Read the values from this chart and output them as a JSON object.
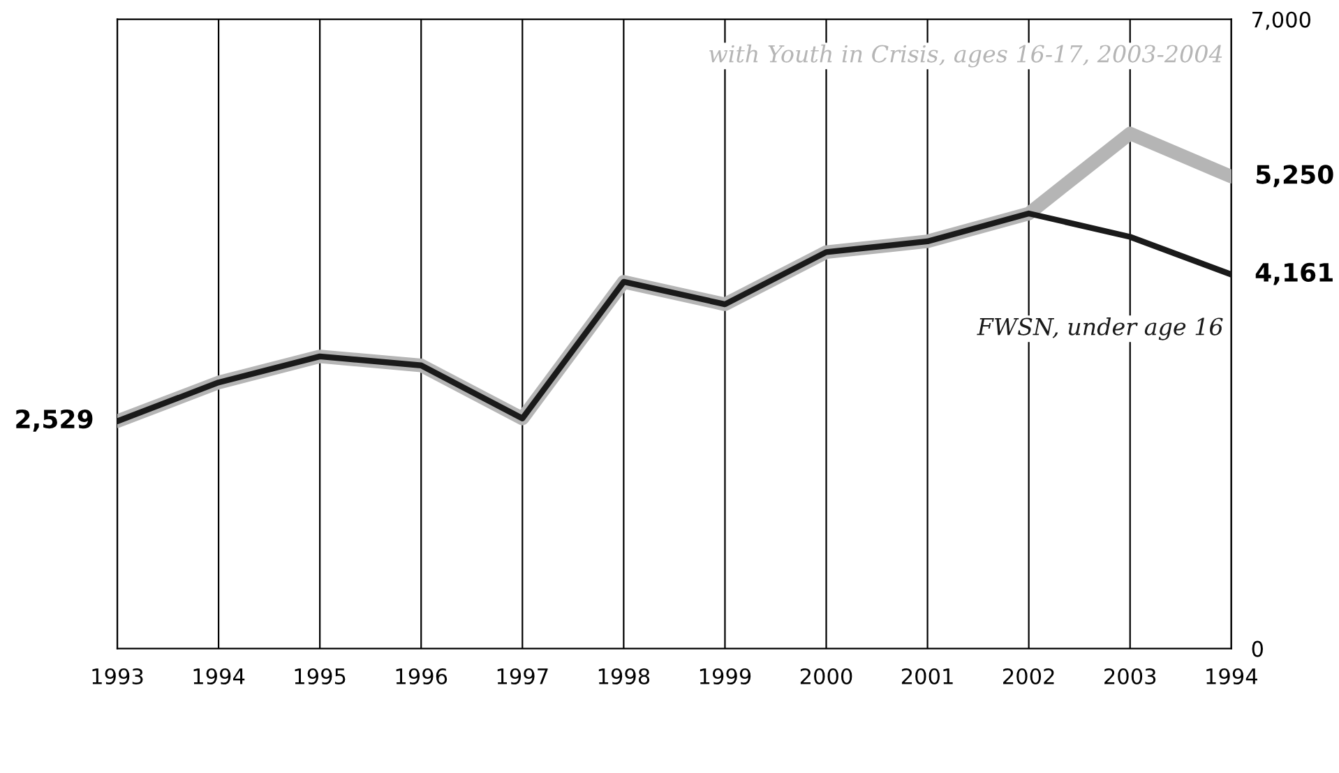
{
  "chart_data": {
    "type": "line",
    "categories": [
      "1993",
      "1994",
      "1995",
      "1996",
      "1997",
      "1998",
      "1999",
      "2000",
      "2001",
      "2002",
      "2003",
      "1994"
    ],
    "series": [
      {
        "name": "with Youth in Crisis, ages 16-17, 2003-2004",
        "color": "#b5b5b5",
        "values": [
          2529,
          2960,
          3250,
          3150,
          2560,
          4080,
          3830,
          4410,
          4530,
          4840,
          5730,
          5250
        ],
        "value_labels": [
          null,
          null,
          null,
          null,
          null,
          null,
          null,
          null,
          null,
          null,
          null,
          "5,250"
        ]
      },
      {
        "name": "FWSN, under age 16",
        "color": "#1a1a1a",
        "values": [
          2529,
          2960,
          3250,
          3150,
          2560,
          4080,
          3830,
          4410,
          4530,
          4840,
          4580,
          4161
        ],
        "value_labels": [
          "2,529",
          null,
          null,
          null,
          null,
          null,
          null,
          null,
          null,
          null,
          null,
          "4,161"
        ]
      }
    ],
    "ylim": [
      0,
      7000
    ],
    "yticks": [
      0,
      {
        "value": 7000,
        "label": "7,000"
      }
    ],
    "grid": "x",
    "marker": "none",
    "line_style": "solid",
    "legend": false
  }
}
